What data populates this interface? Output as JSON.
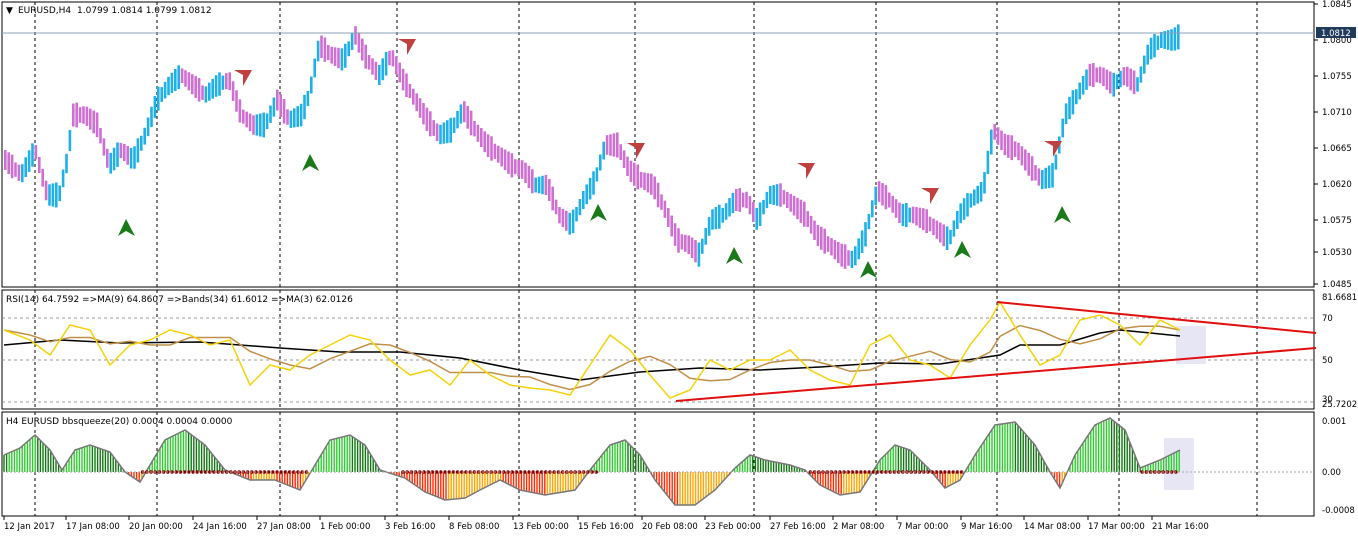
{
  "main": {
    "title": "EURUSD,H4",
    "ohlc": "1.0799 1.0814 1.0799 1.0812",
    "current_price": "1.0812",
    "price_labels": [
      "1.0845",
      "1.0800",
      "1.0755",
      "1.0710",
      "1.0665",
      "1.0620",
      "1.0575",
      "1.0530",
      "1.0485"
    ],
    "colors": {
      "up": "#1fb0e8",
      "down": "#cf6fd3",
      "buy_arrow": "#1a7a1a",
      "sell_arrow": "#c04040",
      "price_line": "#8aa0b8"
    }
  },
  "rsi": {
    "title": "RSI(14) 64.7592  =>MA(9) 64.8607  =>Bands(34) 61.6012  =>MA(3) 62.0126",
    "labels": [
      "81.6681",
      "70",
      "50",
      "30",
      "25.7202"
    ],
    "colors": {
      "rsi": "#f5d20a",
      "ma": "#c0904a",
      "bands": "#000000",
      "trend": "#e01010"
    }
  },
  "squeeze": {
    "title": "H4 EURUSD bbsqueeze(20) 0.0004 0.0004 0.0000",
    "labels": [
      "0.001",
      "0.00",
      "-0.0008"
    ],
    "colors": {
      "pos_light": "#2ecc2e",
      "pos_dark": "#117711",
      "neg_red": "#ff2a00",
      "neg_orange": "#ffa500",
      "dot": "#8b0000"
    }
  },
  "time_axis": [
    "12 Jan 2017",
    "17 Jan 08:00",
    "20 Jan 00:00",
    "24 Jan 16:00",
    "27 Jan 08:00",
    "1 Feb 00:00",
    "3 Feb 16:00",
    "8 Feb 08:00",
    "13 Feb 00:00",
    "15 Feb 16:00",
    "20 Feb 08:00",
    "23 Feb 00:00",
    "27 Feb 16:00",
    "2 Mar 08:00",
    "7 Mar 00:00",
    "9 Mar 16:00",
    "14 Mar 08:00",
    "17 Mar 00:00",
    "21 Mar 16:00"
  ]
}
